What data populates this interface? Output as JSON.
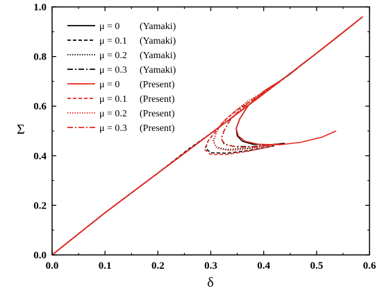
{
  "chart_data": {
    "type": "line",
    "xlabel": "δ",
    "ylabel": "Σ",
    "xlim": [
      0,
      0.6
    ],
    "ylim": [
      0,
      1.0
    ],
    "xticks": [
      "0.0",
      "0.1",
      "0.2",
      "0.3",
      "0.4",
      "0.5",
      "0.6"
    ],
    "yticks": [
      "0.0",
      "0.2",
      "0.4",
      "0.6",
      "0.8",
      "1.0"
    ],
    "grid": false,
    "legend_position": "top-left",
    "series": [
      {
        "name": "μ = 0   (Yamaki)",
        "mu": "μ = 0",
        "source": "(Yamaki)",
        "color": "#000000",
        "dash": "solid",
        "x": [
          0,
          0.1,
          0.2,
          0.3,
          0.4,
          0.43,
          0.45,
          0.47,
          0.5,
          0.54,
          0.587
        ],
        "y": [
          0,
          0.17,
          0.33,
          0.49,
          0.65,
          0.7,
          0.73,
          0.765,
          0.813,
          0.88,
          0.96
        ],
        "branch_x": [
          0.43,
          0.4,
          0.37,
          0.355,
          0.348,
          0.35,
          0.36,
          0.38,
          0.41,
          0.44
        ],
        "branch_y": [
          0.7,
          0.66,
          0.6,
          0.55,
          0.51,
          0.48,
          0.458,
          0.446,
          0.444,
          0.45
        ]
      },
      {
        "name": "μ = 0.1 (Yamaki)",
        "mu": "μ = 0.1",
        "source": "(Yamaki)",
        "color": "#000000",
        "dash": "dash",
        "x": [
          0,
          0.1,
          0.2,
          0.26,
          0.3,
          0.35,
          0.4,
          0.45,
          0.5,
          0.587
        ],
        "y": [
          0,
          0.17,
          0.33,
          0.43,
          0.49,
          0.57,
          0.65,
          0.73,
          0.813,
          0.96
        ],
        "branch_x": [
          0.4,
          0.36,
          0.33,
          0.31,
          0.295,
          0.29,
          0.3,
          0.33,
          0.37,
          0.42
        ],
        "branch_y": [
          0.65,
          0.6,
          0.55,
          0.5,
          0.46,
          0.43,
          0.412,
          0.41,
          0.42,
          0.44
        ]
      },
      {
        "name": "μ = 0.2 (Yamaki)",
        "mu": "μ = 0.2",
        "source": "(Yamaki)",
        "color": "#000000",
        "dash": "dot",
        "x": [
          0,
          0.1,
          0.2,
          0.3,
          0.4,
          0.5,
          0.587
        ],
        "y": [
          0,
          0.17,
          0.33,
          0.49,
          0.65,
          0.813,
          0.96
        ],
        "branch_x": [
          0.41,
          0.37,
          0.34,
          0.32,
          0.31,
          0.305,
          0.31,
          0.33,
          0.37,
          0.42
        ],
        "branch_y": [
          0.67,
          0.62,
          0.57,
          0.53,
          0.49,
          0.46,
          0.435,
          0.425,
          0.43,
          0.445
        ]
      },
      {
        "name": "μ = 0.3 (Yamaki)",
        "mu": "μ = 0.3",
        "source": "(Yamaki)",
        "color": "#000000",
        "dash": "dashdot",
        "x": [
          0,
          0.1,
          0.2,
          0.3,
          0.4,
          0.5,
          0.587
        ],
        "y": [
          0,
          0.17,
          0.33,
          0.49,
          0.65,
          0.813,
          0.96
        ],
        "branch_x": [
          0.42,
          0.385,
          0.355,
          0.335,
          0.325,
          0.32,
          0.325,
          0.345,
          0.38,
          0.43
        ],
        "branch_y": [
          0.685,
          0.635,
          0.585,
          0.54,
          0.5,
          0.47,
          0.448,
          0.437,
          0.437,
          0.448
        ]
      },
      {
        "name": "μ = 0   (Present)",
        "mu": "μ = 0",
        "source": "(Present)",
        "color": "#e8241c",
        "dash": "solid",
        "x": [
          0,
          0.1,
          0.2,
          0.3,
          0.4,
          0.5,
          0.587
        ],
        "y": [
          0,
          0.17,
          0.33,
          0.49,
          0.65,
          0.813,
          0.96
        ],
        "branch_x": [
          0.43,
          0.4,
          0.37,
          0.355,
          0.348,
          0.352,
          0.365,
          0.39,
          0.43,
          0.47,
          0.51,
          0.537
        ],
        "branch_y": [
          0.7,
          0.66,
          0.6,
          0.55,
          0.51,
          0.48,
          0.458,
          0.446,
          0.444,
          0.454,
          0.475,
          0.5
        ]
      },
      {
        "name": "μ = 0.1 (Present)",
        "mu": "μ = 0.1",
        "source": "(Present)",
        "color": "#e8241c",
        "dash": "dash",
        "x": [
          0,
          0.1,
          0.2,
          0.3,
          0.4,
          0.5,
          0.587
        ],
        "y": [
          0,
          0.17,
          0.33,
          0.49,
          0.65,
          0.813,
          0.96
        ],
        "branch_x": [
          0.4,
          0.36,
          0.33,
          0.31,
          0.295,
          0.288,
          0.3,
          0.33,
          0.37,
          0.42
        ],
        "branch_y": [
          0.65,
          0.6,
          0.55,
          0.5,
          0.46,
          0.425,
          0.405,
          0.405,
          0.418,
          0.44
        ]
      },
      {
        "name": "μ = 0.2 (Present)",
        "mu": "μ = 0.2",
        "source": "(Present)",
        "color": "#e8241c",
        "dash": "dot",
        "x": [
          0,
          0.1,
          0.2,
          0.3,
          0.4,
          0.5,
          0.587
        ],
        "y": [
          0,
          0.17,
          0.33,
          0.49,
          0.65,
          0.813,
          0.96
        ],
        "branch_x": [
          0.41,
          0.37,
          0.34,
          0.32,
          0.31,
          0.305,
          0.312,
          0.335,
          0.375,
          0.42
        ],
        "branch_y": [
          0.67,
          0.62,
          0.57,
          0.53,
          0.49,
          0.455,
          0.43,
          0.42,
          0.428,
          0.445
        ]
      },
      {
        "name": "μ = 0.3 (Present)",
        "mu": "μ = 0.3",
        "source": "(Present)",
        "color": "#e8241c",
        "dash": "dashdot",
        "x": [
          0,
          0.1,
          0.2,
          0.3,
          0.4,
          0.5,
          0.587
        ],
        "y": [
          0,
          0.17,
          0.33,
          0.49,
          0.65,
          0.813,
          0.96
        ],
        "branch_x": [
          0.42,
          0.385,
          0.355,
          0.335,
          0.325,
          0.32,
          0.327,
          0.35,
          0.385,
          0.43
        ],
        "branch_y": [
          0.685,
          0.635,
          0.585,
          0.54,
          0.5,
          0.468,
          0.445,
          0.434,
          0.436,
          0.448
        ]
      }
    ]
  }
}
